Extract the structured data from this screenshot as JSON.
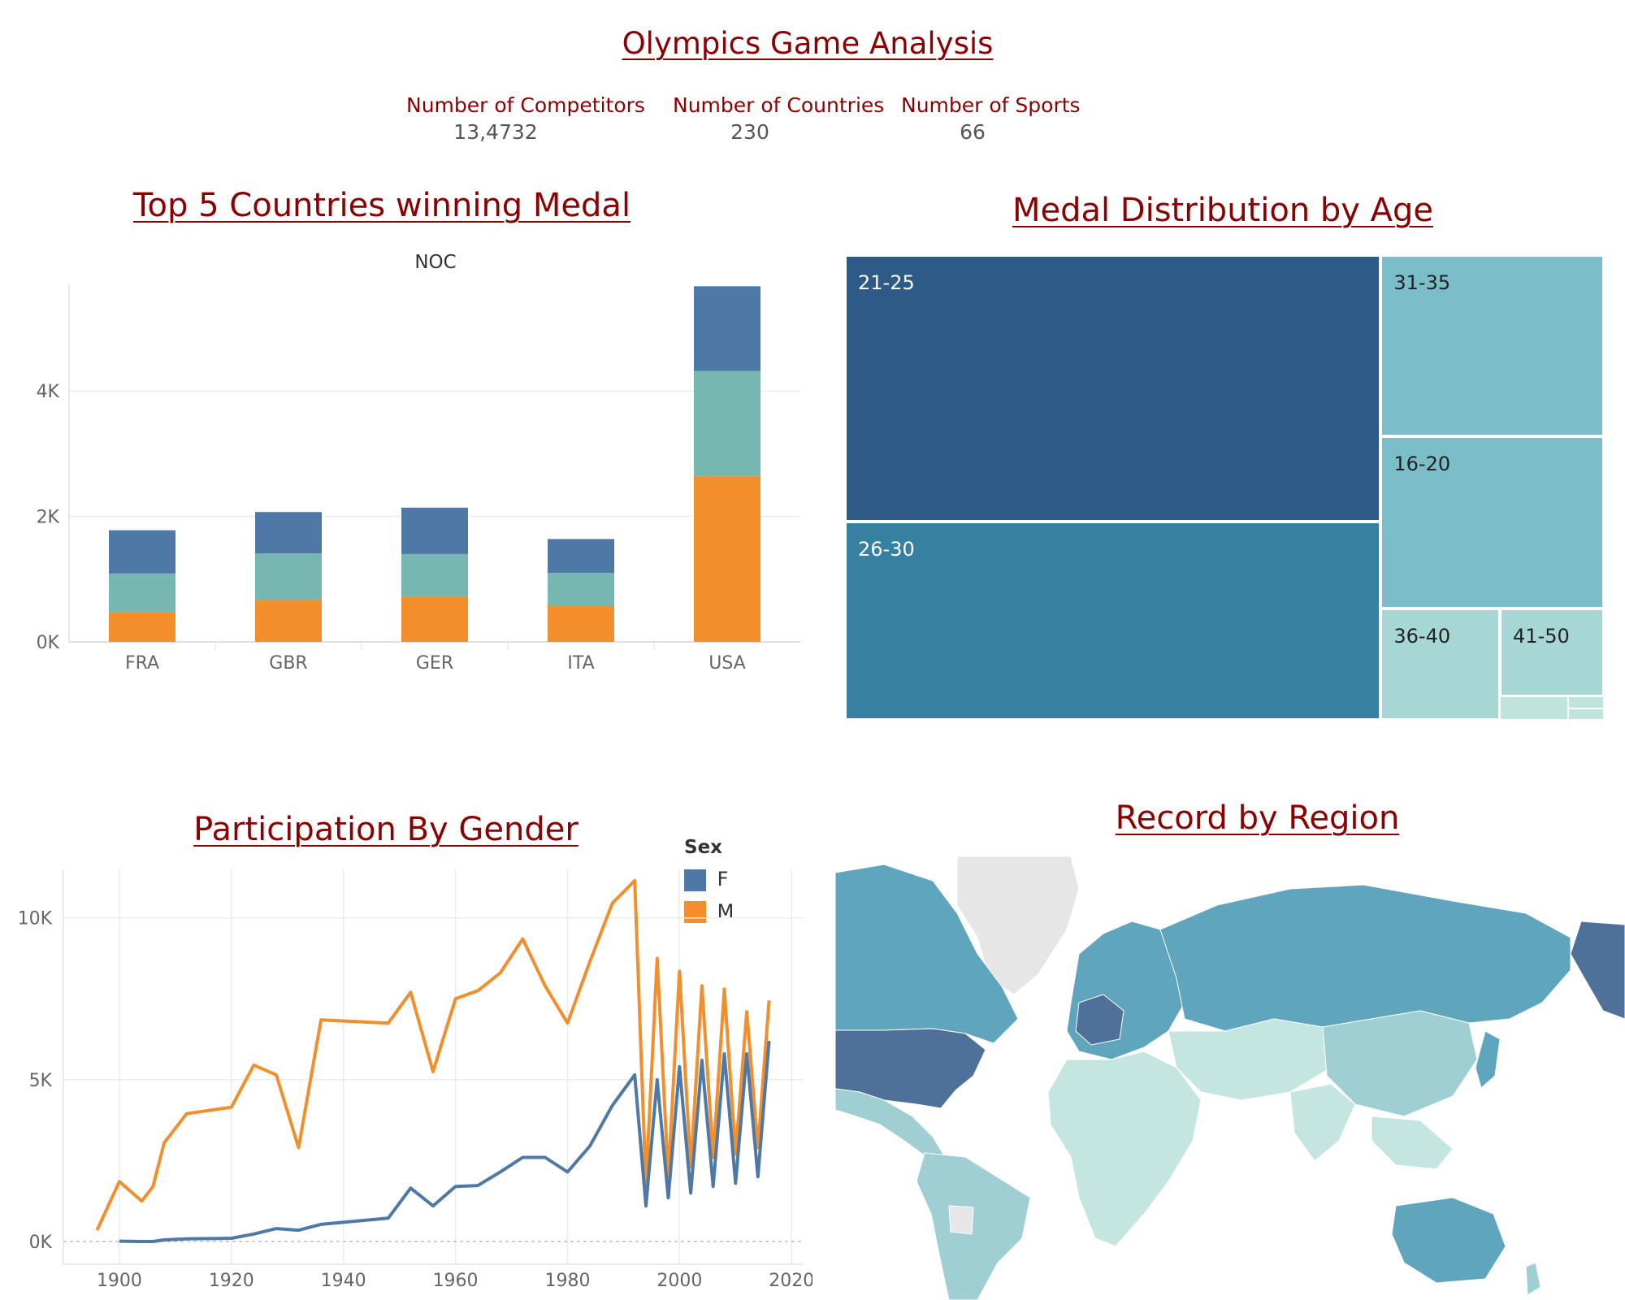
{
  "header": {
    "title": "Olympics Game Analysis",
    "kpis": [
      {
        "label": "Number of Competitors",
        "value": "13,4732"
      },
      {
        "label": "Number of Countries",
        "value": "230"
      },
      {
        "label": "Number of Sports",
        "value": "66"
      }
    ]
  },
  "colors": {
    "title": "#8b0000",
    "blue": "#4e79a7",
    "teal": "#76b7b2",
    "orange": "#f28e2b"
  },
  "bar_section": {
    "title": "Top 5 Countries winning Medal"
  },
  "treemap_section": {
    "title": "Medal Distribution by Age"
  },
  "line_section": {
    "title": "Participation By Gender"
  },
  "map_section": {
    "title": "Record by Region"
  },
  "chart_data": [
    {
      "type": "bar",
      "stacked": true,
      "title": "NOC",
      "categories": [
        "FRA",
        "GBR",
        "GER",
        "ITA",
        "USA"
      ],
      "series": [
        {
          "color": "#f28e2b",
          "values": [
            470,
            670,
            720,
            570,
            2640
          ]
        },
        {
          "color": "#76b7b2",
          "values": [
            620,
            740,
            680,
            530,
            1680
          ]
        },
        {
          "color": "#4e79a7",
          "values": [
            690,
            660,
            740,
            540,
            1350
          ]
        }
      ],
      "ylim": [
        0,
        5700
      ],
      "yticks": [
        {
          "v": 0,
          "label": "0K"
        },
        {
          "v": 2000,
          "label": "2K"
        },
        {
          "v": 4000,
          "label": "4K"
        }
      ],
      "grid": true
    },
    {
      "type": "treemap",
      "cells": [
        {
          "label": "21-25",
          "share": 0.398,
          "color": "#2e5a87"
        },
        {
          "label": "26-30",
          "share": 0.297,
          "color": "#3681a2"
        },
        {
          "label": "31-35",
          "share": 0.104,
          "color": "#7bbec9"
        },
        {
          "label": "16-20",
          "share": 0.095,
          "color": "#7bbec9"
        },
        {
          "label": "36-40",
          "share": 0.047,
          "color": "#a6d7d5"
        },
        {
          "label": "41-50",
          "share": 0.035,
          "color": "#a6d7d5"
        }
      ]
    },
    {
      "type": "line",
      "legend": {
        "title": "Sex",
        "position": "top-right"
      },
      "series": [
        {
          "name": "F",
          "color": "#4e79a7",
          "x": [
            1900,
            1904,
            1906,
            1908,
            1912,
            1920,
            1924,
            1928,
            1932,
            1936,
            1948,
            1952,
            1956,
            1960,
            1964,
            1968,
            1972,
            1976,
            1980,
            1984,
            1988,
            1992,
            1994,
            1996,
            1998,
            2000,
            2002,
            2004,
            2006,
            2008,
            2010,
            2012,
            2014,
            2016
          ],
          "y": [
            10,
            0,
            0,
            50,
            80,
            100,
            230,
            400,
            350,
            530,
            720,
            1650,
            1100,
            1700,
            1730,
            2150,
            2600,
            2600,
            2150,
            2950,
            4200,
            5150,
            1100,
            5000,
            1350,
            5400,
            1500,
            5600,
            1700,
            5800,
            1800,
            5800,
            2000,
            6200
          ]
        },
        {
          "name": "M",
          "color": "#f28e2b",
          "x": [
            1896,
            1900,
            1904,
            1906,
            1908,
            1912,
            1920,
            1924,
            1928,
            1932,
            1936,
            1948,
            1952,
            1956,
            1960,
            1964,
            1968,
            1972,
            1976,
            1980,
            1984,
            1988,
            1992,
            1994,
            1996,
            1998,
            2000,
            2002,
            2004,
            2006,
            2008,
            2010,
            2012,
            2014,
            2016
          ],
          "y": [
            350,
            1850,
            1250,
            1700,
            3050,
            3950,
            4150,
            5450,
            5150,
            2900,
            6850,
            6750,
            7700,
            5250,
            7500,
            7750,
            8300,
            9350,
            7900,
            6750,
            8650,
            10450,
            11150,
            1700,
            8750,
            2000,
            8350,
            2300,
            7900,
            2600,
            7800,
            2700,
            7100,
            2900,
            7450
          ]
        }
      ],
      "xlim": [
        1890,
        2022
      ],
      "xticks": [
        1900,
        1920,
        1940,
        1960,
        1980,
        2000,
        2020
      ],
      "ylim": [
        0,
        11500
      ],
      "yticks": [
        {
          "v": 0,
          "label": "0K"
        },
        {
          "v": 5000,
          "label": "5K"
        },
        {
          "v": 10000,
          "label": "10K"
        }
      ],
      "grid": true
    }
  ],
  "map_data": {
    "type": "choropleth",
    "levels": [
      "#4f7199",
      "#5ea5bd",
      "#9fcfd2",
      "#c5e6e0",
      "#e6e6e6"
    ]
  }
}
